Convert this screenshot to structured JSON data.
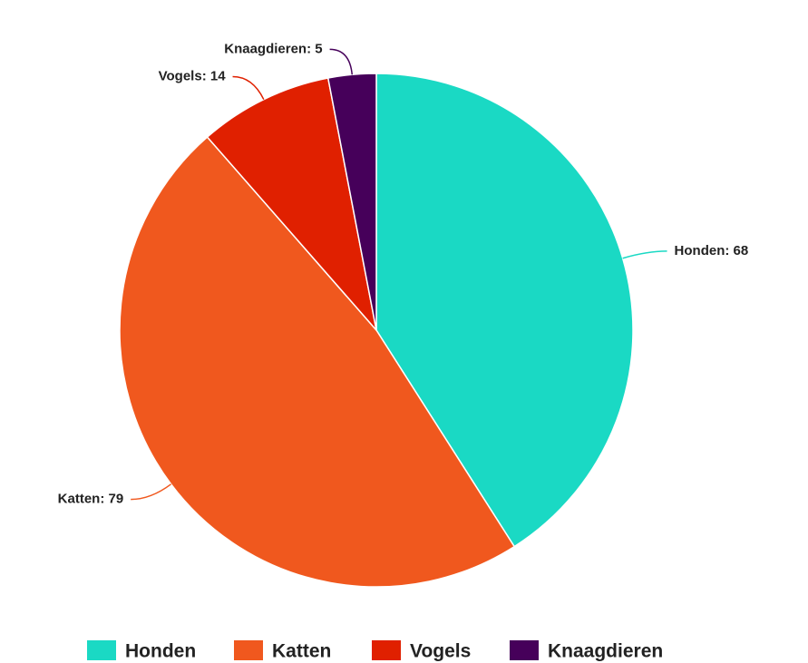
{
  "chart_data": {
    "type": "pie",
    "categories": [
      "Honden",
      "Katten",
      "Vogels",
      "Knaagdieren"
    ],
    "values": [
      68,
      79,
      14,
      5
    ],
    "value_labels": [
      "Honden: 68",
      "Katten: 79",
      "Vogels: 14",
      "Knaagdieren: 5"
    ],
    "colors": [
      "#1ad9c4",
      "#f0581e",
      "#e02000",
      "#46005a"
    ],
    "legend": "bottom"
  }
}
